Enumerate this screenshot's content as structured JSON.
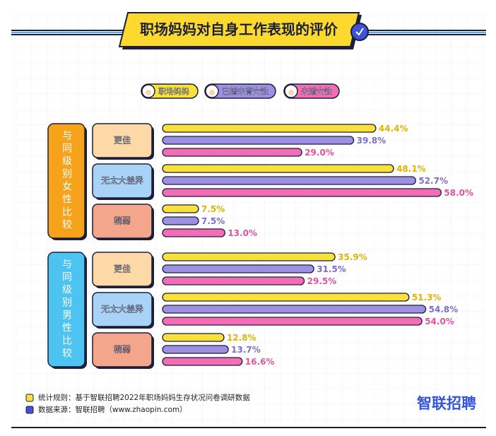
{
  "chart_data": {
    "type": "bar",
    "orientation": "horizontal",
    "title": "职场妈妈对自身工作表现的评价",
    "groups": [
      {
        "label": "与同级别女性比较",
        "color": "#f7a21b"
      },
      {
        "label": "与同级别男性比较",
        "color": "#4cc3f0"
      }
    ],
    "categories": [
      "更佳",
      "无太大差异",
      "稍弱",
      "更佳",
      "无太大差异",
      "稍弱"
    ],
    "category_colors": [
      "#fcd9a6",
      "#a9d3f6",
      "#f4a68c",
      "#fcd9a6",
      "#a9d3f6",
      "#f4a68c"
    ],
    "series": [
      {
        "name": "职场妈妈",
        "color": "#f9e13c",
        "label_color": "#e2b400",
        "values": [
          44.4,
          48.1,
          7.5,
          35.9,
          51.3,
          12.8
        ],
        "value_labels": [
          "44.4%",
          "48.1%",
          "7.5%",
          "35.9%",
          "51.3%",
          "12.8%"
        ]
      },
      {
        "name": "已婚未育女性",
        "color": "#9d90e2",
        "label_color": "#7a6dd3",
        "values": [
          39.8,
          52.7,
          7.5,
          31.5,
          54.8,
          13.7
        ],
        "value_labels": [
          "39.8%",
          "52.7%",
          "7.5%",
          "31.5%",
          "54.8%",
          "13.7%"
        ]
      },
      {
        "name": "未婚女性",
        "color": "#f36cb6",
        "label_color": "#e8509e",
        "values": [
          29.0,
          58.0,
          13.0,
          29.5,
          54.0,
          16.6
        ],
        "value_labels": [
          "29.0%",
          "58.0%",
          "13.0%",
          "29.5%",
          "54.0%",
          "16.6%"
        ]
      }
    ],
    "notes": [
      {
        "text": "统计规则：基于智联招聘2022年职场妈妈生存状况问卷调研数据",
        "color": "#f9e13c"
      },
      {
        "text": "数据来源：智联招聘（www.zhaopin.com）",
        "color": "#4a4fd6"
      }
    ],
    "brand": "智联招聘"
  }
}
